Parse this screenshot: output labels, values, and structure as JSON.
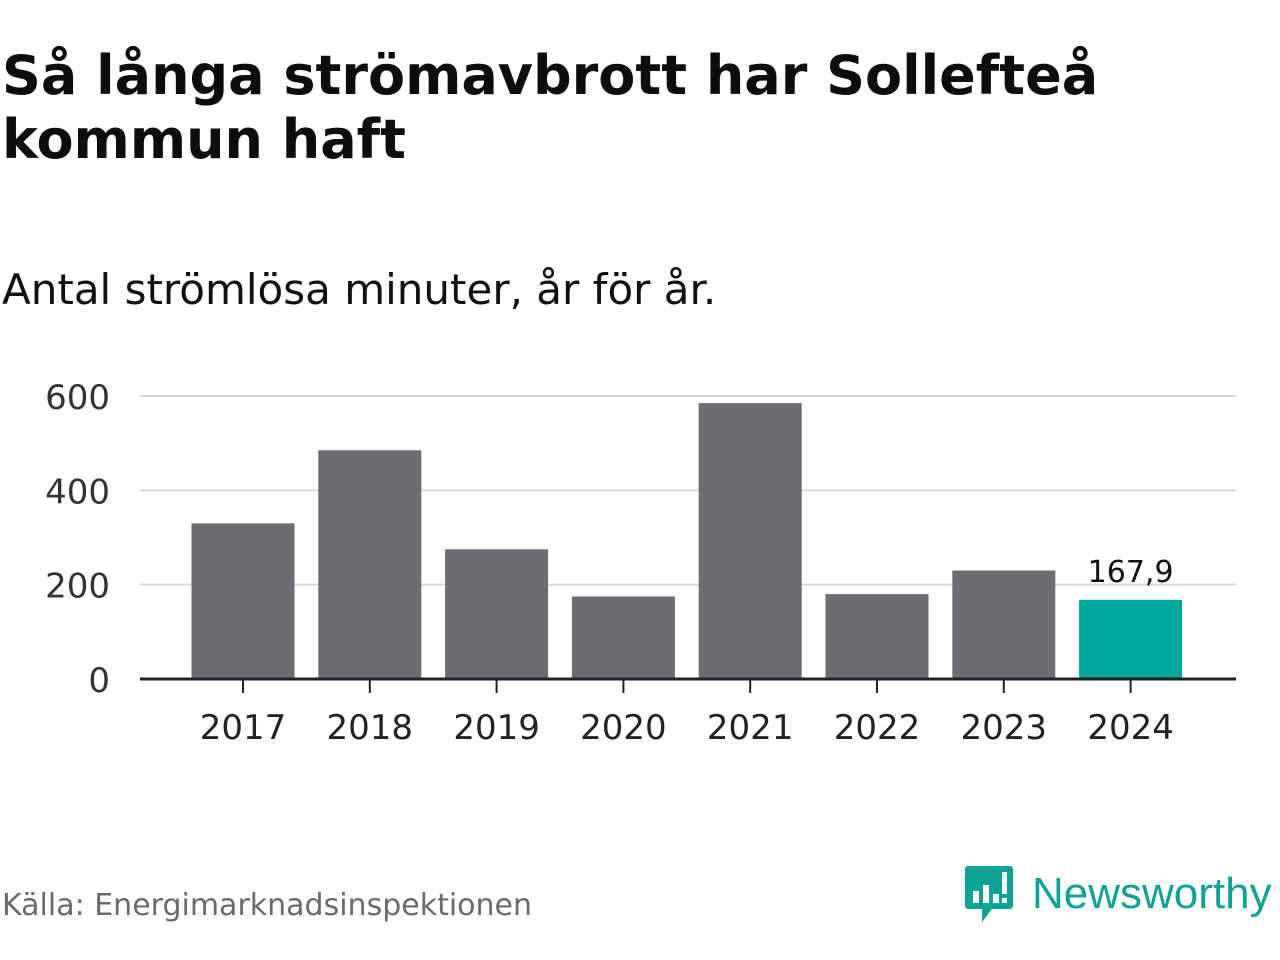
{
  "header": {
    "title": "Så långa strömavbrott har Sollefteå kommun haft",
    "subtitle": "Antal strömlösa minuter, år för år."
  },
  "footer": {
    "source": "Källa: Energimarknadsinspektionen",
    "brand_name": "Newsworthy",
    "brand_icon": "newsworthy-logo-icon"
  },
  "colors": {
    "bar": "#6e6d72",
    "highlight": "#00a69c",
    "grid": "#d9d9d9",
    "axis": "#222222",
    "brand": "#0fa397"
  },
  "chart_data": {
    "type": "bar",
    "title": "Så långa strömavbrott har Sollefteå kommun haft",
    "subtitle": "Antal strömlösa minuter, år för år.",
    "xlabel": "",
    "ylabel": "",
    "categories": [
      "2017",
      "2018",
      "2019",
      "2020",
      "2021",
      "2022",
      "2023",
      "2024"
    ],
    "values": [
      330,
      485,
      275,
      175,
      585,
      180,
      230,
      167.9
    ],
    "ylim": [
      0,
      600
    ],
    "yticks": [
      0,
      200,
      400,
      600
    ],
    "ytick_labels": [
      "0",
      "200",
      "400",
      "600"
    ],
    "grid": true,
    "highlight_index": 7,
    "annotations": [
      {
        "category": "2024",
        "text": "167,9"
      }
    ]
  }
}
